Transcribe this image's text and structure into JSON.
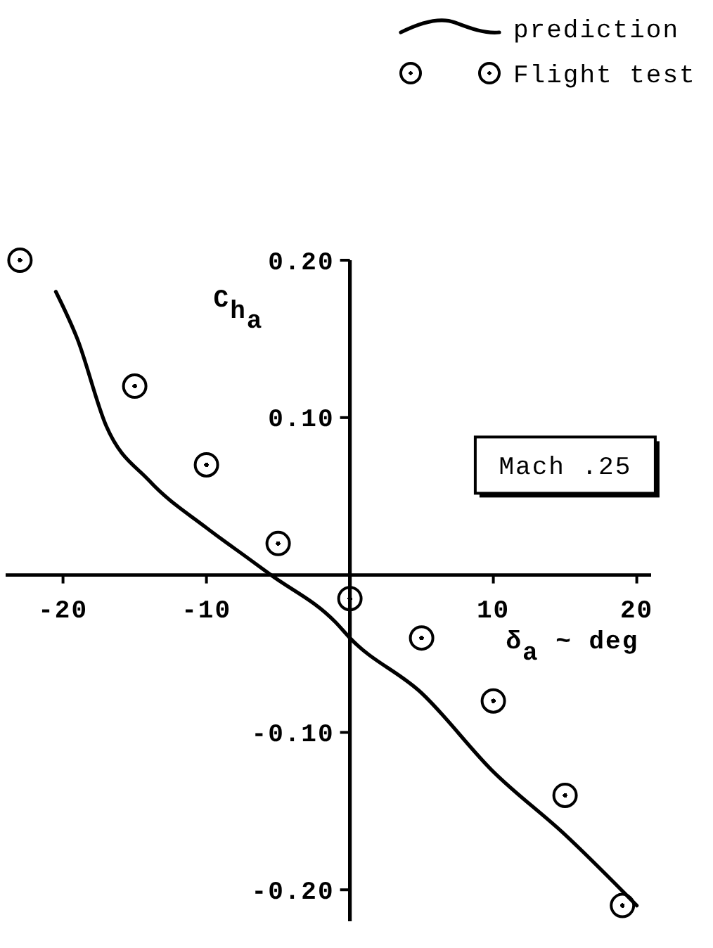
{
  "chart_data": {
    "type": "line",
    "xlabel": "δ$_{a}$ ~ deg",
    "ylabel": "C$_{h}$$_{a}$",
    "annotations": [
      "Mach .25"
    ],
    "xlim": [
      -24,
      21
    ],
    "xticks": [
      -20,
      -10,
      10,
      20
    ],
    "ylim": [
      -0.22,
      0.2
    ],
    "yticks": [
      {
        "value": 0.2,
        "label": "0.20"
      },
      {
        "value": 0.1,
        "label": "0.10"
      },
      {
        "value": -0.1,
        "label": "-0.10"
      },
      {
        "value": -0.2,
        "label": "-0.20"
      }
    ],
    "legend": "top right",
    "series": [
      {
        "name": "prediction",
        "color": "#000000",
        "x": [
          -20.5,
          -19,
          -17,
          -14,
          -10,
          -7,
          -5.5,
          -1,
          0,
          5,
          10,
          15,
          20
        ],
        "values": [
          0.18,
          0.15,
          0.095,
          0.06,
          0.03,
          0.01,
          0,
          -0.03,
          -0.04,
          -0.075,
          -0.125,
          -0.165,
          -0.21
        ]
      },
      {
        "name": "Flight test",
        "type": "scatter",
        "marker": "circle",
        "color": "#000000",
        "x": [
          -23,
          -15,
          -10,
          -5,
          0,
          5,
          10,
          15,
          19
        ],
        "values": [
          0.2,
          0.12,
          0.07,
          0.02,
          -0.015,
          -0.04,
          -0.08,
          -0.14,
          -0.21
        ]
      }
    ]
  }
}
